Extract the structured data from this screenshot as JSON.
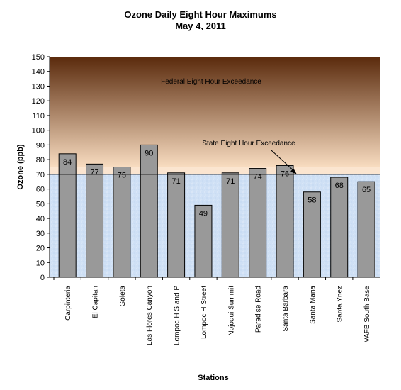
{
  "chart_data": {
    "type": "bar",
    "title": "Ozone Daily Eight Hour Maximums",
    "subtitle": "May 4, 2011",
    "xlabel": "Stations",
    "ylabel": "Ozone (ppb)",
    "ylim": [
      0,
      150
    ],
    "ytick_step": 10,
    "grid": false,
    "categories": [
      "Carpinteria",
      "El Capitan",
      "Goleta",
      "Las Flores Canyon",
      "Lompoc H S and P",
      "Lompoc H Street",
      "Nojoqui Summit",
      "Paradise Road",
      "Santa Barbara",
      "Santa Maria",
      "Santa Ynez",
      "VAFB South Base"
    ],
    "values": [
      84,
      77,
      75,
      90,
      71,
      49,
      71,
      74,
      76,
      58,
      68,
      65
    ],
    "bar_color": "#999999",
    "thresholds": [
      {
        "label": "Federal Eight Hour Exceedance",
        "value": 75
      },
      {
        "label": "State Eight Hour Exceedance",
        "value": 70
      }
    ],
    "colors": {
      "band_top": "#5a2a0c",
      "band_bottom": "#f8dcc0",
      "below_threshold": "#cfe0f5"
    }
  }
}
